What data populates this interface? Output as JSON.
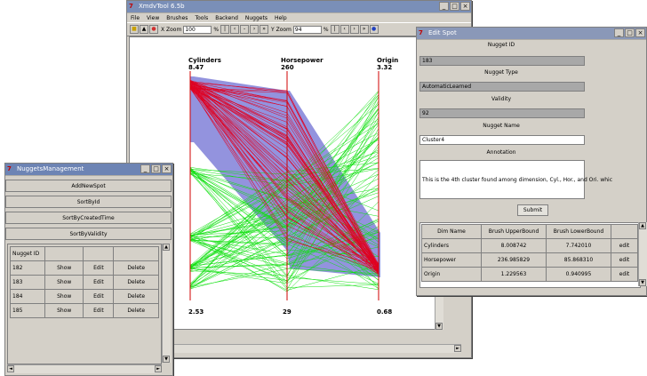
{
  "xmdv": {
    "title": "XmdvTool 6.5b",
    "menu": [
      "File",
      "View",
      "Brushes",
      "Tools",
      "Backend",
      "Nuggets",
      "Help"
    ],
    "xzoom_label": "X Zoom",
    "xzoom_value": "100",
    "yzoom_label": "Y Zoom",
    "yzoom_value": "94",
    "percent": "%",
    "axes": [
      {
        "name": "Cylinders",
        "max": "8.47",
        "min": "2.53"
      },
      {
        "name": "Horsepower",
        "max": "260",
        "min": "29"
      },
      {
        "name": "Origin",
        "max": "3.32",
        "min": "0.68"
      }
    ]
  },
  "edit_spot": {
    "title": "Edit Spot",
    "nugget_id_label": "Nugget ID",
    "nugget_id_value": "183",
    "nugget_type_label": "Nugget Type",
    "nugget_type_value": "AutomaticLearned",
    "validity_label": "Validity",
    "validity_value": "92",
    "nugget_name_label": "Nugget Name",
    "nugget_name_value": "Cluster4",
    "annotation_label": "Annotation",
    "annotation_value": "This is the 4th cluster found among dimension, Cyl., Hor., and Ori. whic",
    "submit_label": "Submit",
    "table_headers": [
      "Dim Name",
      "Brush UpperBound",
      "Brush LowerBound",
      ""
    ],
    "table_rows": [
      [
        "Cylinders",
        "8.008742",
        "7.742010",
        "edit"
      ],
      [
        "Horsepower",
        "236.985829",
        "85.868310",
        "edit"
      ],
      [
        "Origin",
        "1.229563",
        "0.940995",
        "edit"
      ]
    ]
  },
  "nugget_mgmt": {
    "title": "NuggetsManagement",
    "buttons": [
      "AddNewSpot",
      "SortById",
      "SortByCreatedTime",
      "SortByValidity"
    ],
    "table_headers": [
      "Nugget ID",
      "",
      "",
      ""
    ],
    "table_rows": [
      [
        "182",
        "Show",
        "Edit",
        "Delete"
      ],
      [
        "183",
        "Show",
        "Edit",
        "Delete"
      ],
      [
        "184",
        "Show",
        "Edit",
        "Delete"
      ],
      [
        "185",
        "Show",
        "Edit",
        "Delete"
      ]
    ]
  }
}
